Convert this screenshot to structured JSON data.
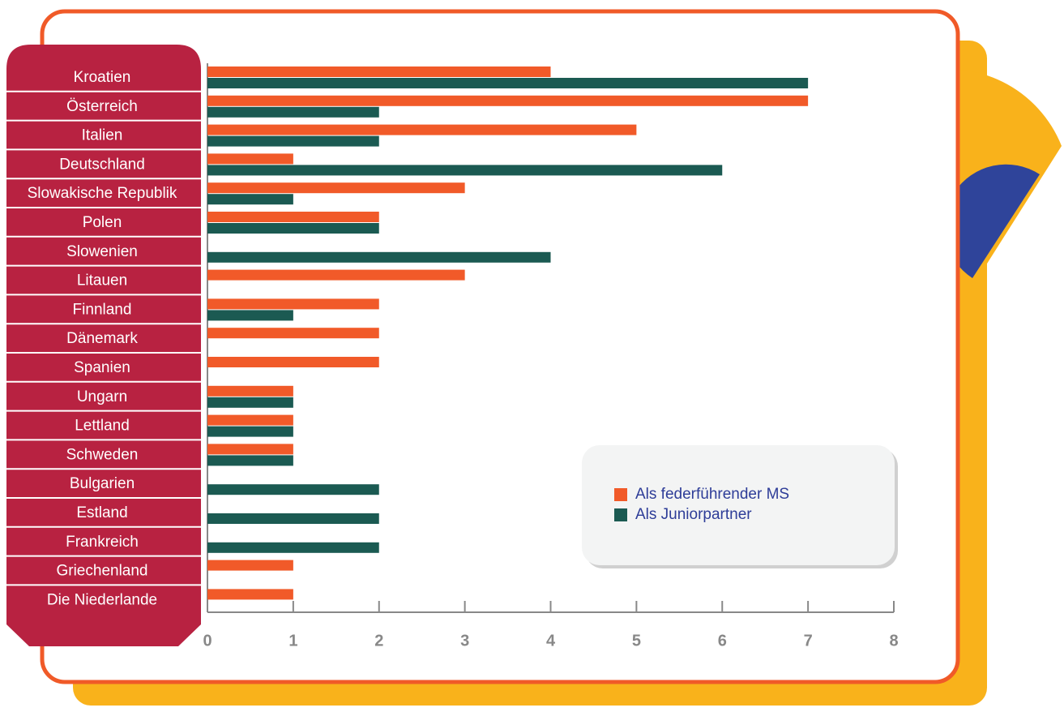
{
  "chart_data": {
    "type": "bar",
    "orientation": "horizontal",
    "categories": [
      "Kroatien",
      "Österreich",
      "Italien",
      "Deutschland",
      "Slowakische Republik",
      "Polen",
      "Slowenien",
      "Litauen",
      "Finnland",
      "Dänemark",
      "Spanien",
      "Ungarn",
      "Lettland",
      "Schweden",
      "Bulgarien",
      "Estland",
      "Frankreich",
      "Griechenland",
      "Die Niederlande"
    ],
    "series": [
      {
        "name": "Als federführender MS",
        "color": "#f15a29",
        "values": [
          4,
          7,
          5,
          1,
          3,
          2,
          0,
          3,
          2,
          2,
          2,
          1,
          1,
          1,
          0,
          0,
          0,
          1,
          1
        ]
      },
      {
        "name": "Als Juniorpartner",
        "color": "#1b5a52",
        "values": [
          7,
          2,
          2,
          6,
          1,
          2,
          4,
          0,
          1,
          0,
          0,
          1,
          1,
          1,
          2,
          2,
          2,
          0,
          0
        ]
      }
    ],
    "xlim": [
      0,
      8
    ],
    "xticks": [
      0,
      1,
      2,
      3,
      4,
      5,
      6,
      7,
      8
    ]
  }
}
